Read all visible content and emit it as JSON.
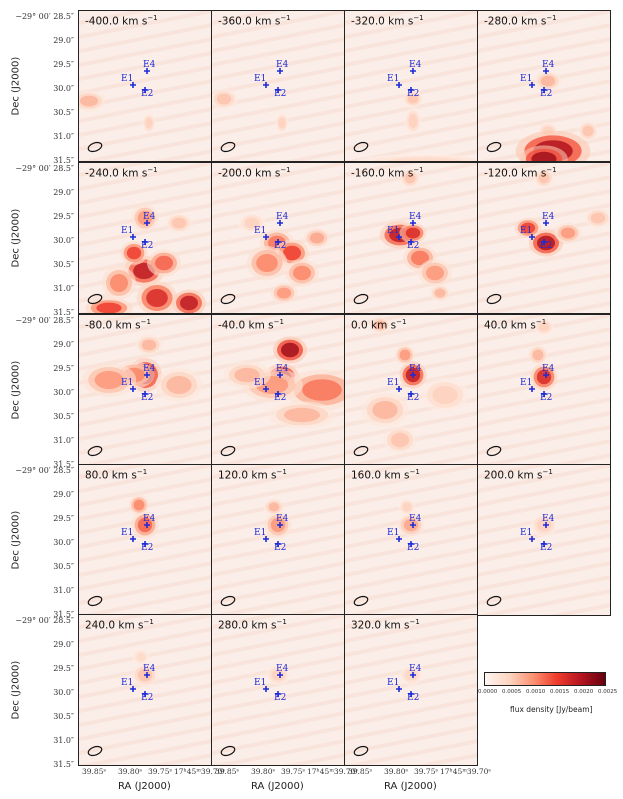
{
  "figure": {
    "velocity_unit": "km s",
    "velocity_unit_exponent": "−1",
    "panels": [
      {
        "vel": "-400.0"
      },
      {
        "vel": "-360.0"
      },
      {
        "vel": "-320.0"
      },
      {
        "vel": "-280.0"
      },
      {
        "vel": "-240.0"
      },
      {
        "vel": "-200.0"
      },
      {
        "vel": "-160.0"
      },
      {
        "vel": "-120.0"
      },
      {
        "vel": "-80.0"
      },
      {
        "vel": "-40.0"
      },
      {
        "vel": "0.0"
      },
      {
        "vel": "40.0"
      },
      {
        "vel": "80.0"
      },
      {
        "vel": "120.0"
      },
      {
        "vel": "160.0"
      },
      {
        "vel": "200.0"
      },
      {
        "vel": "240.0"
      },
      {
        "vel": "280.0"
      },
      {
        "vel": "320.0"
      }
    ],
    "markers": [
      "E4",
      "E1",
      "E2"
    ],
    "y_ticks": [
      "−29° 00′ 28.5″",
      "29.0″",
      "29.5″",
      "30.0″",
      "30.5″",
      "31.0″",
      "31.5″"
    ],
    "y_axis_title": "Dec (J2000)",
    "x_ticks": [
      "39.85ˢ",
      "39.80ˢ",
      "39.75ˢ",
      "17ʰ45ᵐ39.70ˢ"
    ],
    "x_axis_title": "RA (J2000)",
    "colorbar": {
      "ticks": [
        "0.0000",
        "0.0005",
        "0.0010",
        "0.0015",
        "0.0020",
        "0.0025"
      ],
      "label": "flux density [Jy/beam]",
      "colors": [
        "#fff5f0",
        "#fdd5c2",
        "#fc9272",
        "#ef3b2c",
        "#b41521",
        "#67000d"
      ]
    },
    "marker_color": "#1d2bd6"
  }
}
